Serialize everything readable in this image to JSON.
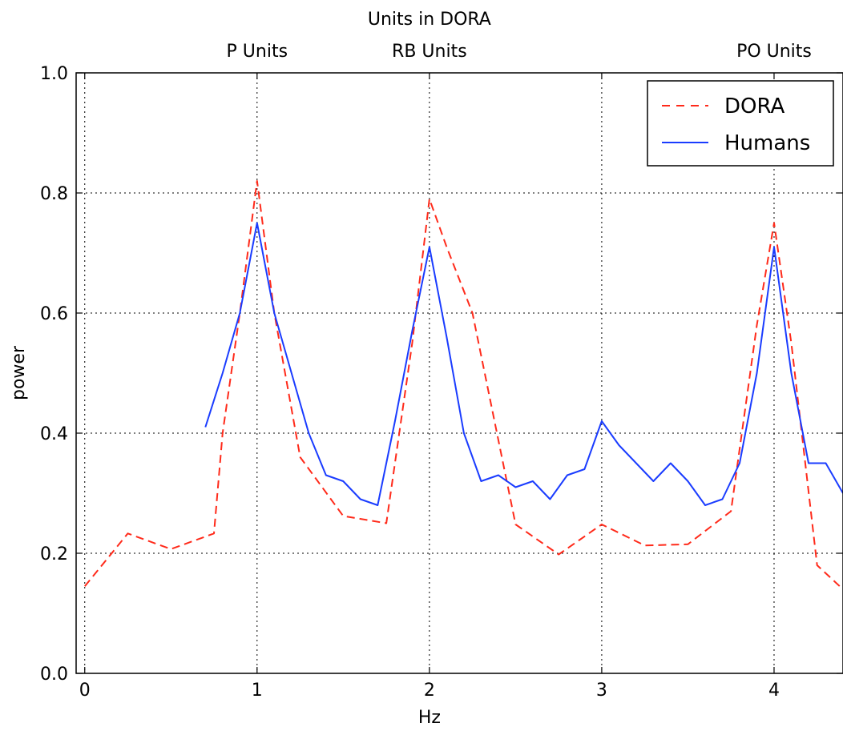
{
  "chart_data": {
    "type": "line",
    "xlabel": "Hz",
    "ylabel": "power",
    "xlim": [
      -0.05,
      4.4
    ],
    "ylim": [
      0.0,
      1.0
    ],
    "x_ticks": [
      0,
      1,
      2,
      3,
      4
    ],
    "y_ticks": [
      0.0,
      0.2,
      0.4,
      0.6,
      0.8,
      1.0
    ],
    "x_tick_labels": [
      "0",
      "1",
      "2",
      "3",
      "4"
    ],
    "y_tick_labels": [
      "0.0",
      "0.2",
      "0.4",
      "0.6",
      "0.8",
      "1.0"
    ],
    "grid": true,
    "legend_position": "top-right",
    "top_axis": {
      "title": "Units in DORA",
      "labels": [
        {
          "x": 1,
          "text": "P Units"
        },
        {
          "x": 2,
          "text": "RB Units"
        },
        {
          "x": 4,
          "text": "PO Units"
        }
      ]
    },
    "series": [
      {
        "name": "DORA",
        "color": "#ff2a1a",
        "style": "dashed",
        "x": [
          0,
          0.25,
          0.5,
          0.75,
          0.8,
          0.9,
          1.0,
          1.1,
          1.25,
          1.5,
          1.75,
          1.9,
          2.0,
          2.1,
          2.25,
          2.5,
          2.75,
          3.0,
          3.25,
          3.5,
          3.75,
          3.9,
          4.0,
          4.1,
          4.25,
          4.4
        ],
        "y": [
          0.145,
          0.233,
          0.207,
          0.233,
          0.4,
          0.6,
          0.82,
          0.6,
          0.36,
          0.262,
          0.25,
          0.55,
          0.79,
          0.71,
          0.6,
          0.248,
          0.198,
          0.248,
          0.213,
          0.215,
          0.27,
          0.58,
          0.75,
          0.55,
          0.18,
          0.14
        ]
      },
      {
        "name": "Humans",
        "color": "#1a3cff",
        "style": "solid",
        "x": [
          0.7,
          0.8,
          0.9,
          1.0,
          1.1,
          1.2,
          1.3,
          1.4,
          1.5,
          1.6,
          1.7,
          1.8,
          1.9,
          2.0,
          2.1,
          2.2,
          2.3,
          2.4,
          2.5,
          2.6,
          2.7,
          2.8,
          2.9,
          3.0,
          3.1,
          3.2,
          3.3,
          3.4,
          3.5,
          3.6,
          3.7,
          3.8,
          3.9,
          4.0,
          4.1,
          4.2,
          4.3,
          4.4
        ],
        "y": [
          0.41,
          0.5,
          0.6,
          0.75,
          0.6,
          0.5,
          0.4,
          0.33,
          0.32,
          0.29,
          0.28,
          0.42,
          0.57,
          0.71,
          0.56,
          0.4,
          0.32,
          0.33,
          0.31,
          0.32,
          0.29,
          0.33,
          0.34,
          0.42,
          0.38,
          0.35,
          0.32,
          0.35,
          0.32,
          0.28,
          0.29,
          0.35,
          0.5,
          0.71,
          0.5,
          0.35,
          0.35,
          0.3
        ]
      }
    ]
  }
}
